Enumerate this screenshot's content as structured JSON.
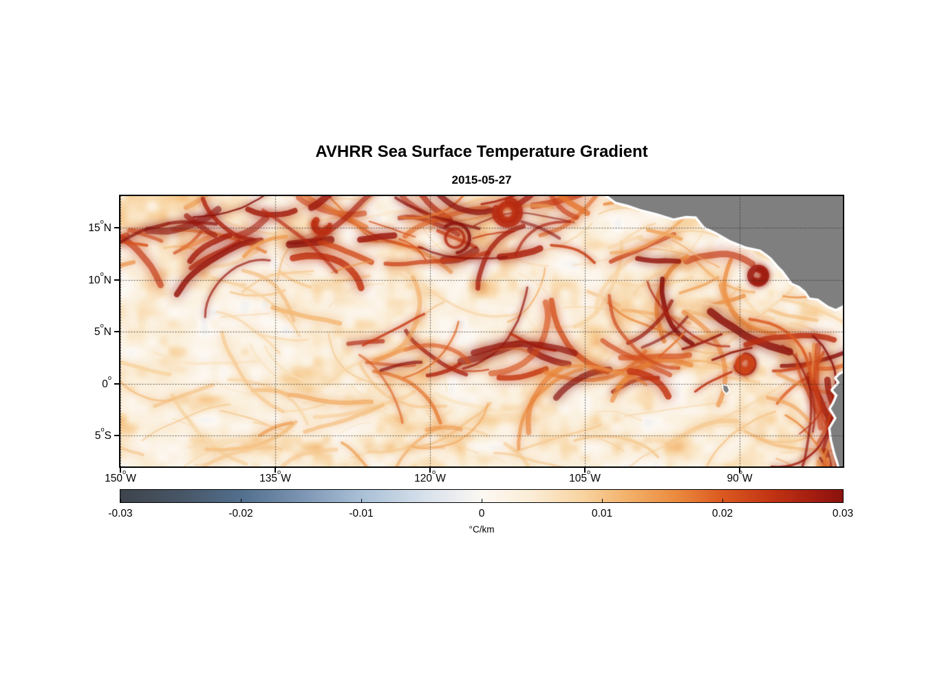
{
  "chart_data": {
    "type": "heatmap",
    "title": "AVHRR Sea Surface Temperature Gradient",
    "date": "2015-05-27",
    "x_axis": {
      "range_lon": [
        -150,
        -80
      ],
      "degree_mark": "o",
      "ticks": [
        {
          "label": "150°W",
          "deg": "150",
          "hemi": "W",
          "lon": -150
        },
        {
          "label": "135°W",
          "deg": "135",
          "hemi": "W",
          "lon": -135
        },
        {
          "label": "120°W",
          "deg": "120",
          "hemi": "W",
          "lon": -120
        },
        {
          "label": "105°W",
          "deg": "105",
          "hemi": "W",
          "lon": -105
        },
        {
          "label": "90°W",
          "deg": "90",
          "hemi": "W",
          "lon": -90
        }
      ]
    },
    "y_axis": {
      "range_lat": [
        -7.95,
        18.05
      ],
      "degree_mark": "o",
      "ticks": [
        {
          "label": "15°N",
          "deg": "15",
          "hemi": "N",
          "lat": 15
        },
        {
          "label": "10°N",
          "deg": "10",
          "hemi": "N",
          "lat": 10
        },
        {
          "label": "5°N",
          "deg": "5",
          "hemi": "N",
          "lat": 5
        },
        {
          "label": "0°",
          "deg": "0",
          "hemi": "",
          "lat": 0
        },
        {
          "label": "5°S",
          "deg": "5",
          "hemi": "S",
          "lat": -5
        }
      ]
    },
    "colorbar": {
      "label": "°C/km",
      "min": -0.03,
      "max": 0.03,
      "ticks": [
        {
          "label": "-0.03",
          "value": -0.03
        },
        {
          "label": "-0.02",
          "value": -0.02
        },
        {
          "label": "-0.01",
          "value": -0.01
        },
        {
          "label": "0",
          "value": 0
        },
        {
          "label": "0.01",
          "value": 0.01
        },
        {
          "label": "0.02",
          "value": 0.02
        },
        {
          "label": "0.03",
          "value": 0.03
        }
      ],
      "colormap_stops": [
        {
          "pos": 0.0,
          "color": "#3e444c"
        },
        {
          "pos": 0.085,
          "color": "#475666"
        },
        {
          "pos": 0.17,
          "color": "#53708e"
        },
        {
          "pos": 0.25,
          "color": "#7b94b2"
        },
        {
          "pos": 0.33,
          "color": "#a7bed5"
        },
        {
          "pos": 0.42,
          "color": "#d6e0eb"
        },
        {
          "pos": 0.5,
          "color": "#fcf8f3"
        },
        {
          "pos": 0.565,
          "color": "#fbeed8"
        },
        {
          "pos": 0.64,
          "color": "#f8d3a0"
        },
        {
          "pos": 0.7,
          "color": "#f3b26c"
        },
        {
          "pos": 0.77,
          "color": "#ea8a3e"
        },
        {
          "pos": 0.83,
          "color": "#dc5b21"
        },
        {
          "pos": 0.9,
          "color": "#c23413"
        },
        {
          "pos": 0.96,
          "color": "#a31d10"
        },
        {
          "pos": 1.0,
          "color": "#8a120e"
        }
      ]
    },
    "map": {
      "ocean_base_color": "#fdf0dc",
      "land_color": "#7f7f7f",
      "coast_outline_color": "#ffffff",
      "grid_color": "#2d2d2d",
      "high_gradient_features": [
        {
          "name": "scattered-weak-filaments",
          "type": "band",
          "lon": [
            -150,
            -80
          ],
          "lat": [
            -8,
            18
          ],
          "intensity": 0.33,
          "count": 130
        },
        {
          "name": "south-weak-band",
          "type": "band",
          "lon": [
            -150,
            -118
          ],
          "lat": [
            -6.5,
            -1.5
          ],
          "intensity": 0.42,
          "count": 22
        },
        {
          "name": "costa-rica-dome-filaments",
          "type": "band",
          "lon": [
            -96,
            -85
          ],
          "lat": [
            4,
            9
          ],
          "intensity": 0.5,
          "count": 18
        },
        {
          "name": "north-tropical-front-band",
          "type": "band",
          "lon": [
            -150,
            -93
          ],
          "lat": [
            11.5,
            17.5
          ],
          "intensity": 0.95,
          "count": 72
        },
        {
          "name": "equatorial-front-band",
          "type": "band",
          "lon": [
            -128,
            -81
          ],
          "lat": [
            0.5,
            4
          ],
          "intensity": 0.9,
          "count": 50
        },
        {
          "name": "south-american-coastal-band",
          "type": "band",
          "lon": [
            -83.5,
            -80
          ],
          "lat": [
            -8,
            1
          ],
          "intensity": 0.95,
          "count": 30,
          "vertical": true
        },
        {
          "name": "north-band-eddy-1",
          "type": "eddy",
          "center": [
            -130.5,
            15.3
          ],
          "radius_deg": 1.4,
          "intensity": 0.9
        },
        {
          "name": "north-band-eddy-2",
          "type": "eddy",
          "center": [
            -117.6,
            14.0
          ],
          "radius_deg": 1.6,
          "intensity": 1.0
        },
        {
          "name": "north-band-eddy-3",
          "type": "eddy",
          "center": [
            -112.5,
            16.5
          ],
          "radius_deg": 1.2,
          "intensity": 0.95
        },
        {
          "name": "tehuantepec-eddy",
          "type": "eddy",
          "center": [
            -88.2,
            10.4
          ],
          "radius_deg": 1.1,
          "intensity": 0.95
        },
        {
          "name": "equatorial-east-eddy",
          "type": "eddy",
          "center": [
            -89.5,
            1.9
          ],
          "radius_deg": 1.3,
          "intensity": 0.95
        }
      ],
      "land_polygons": [
        {
          "name": "central-america-mexico",
          "small": false,
          "points": [
            [
              -103.3,
              18.5
            ],
            [
              -102.0,
              17.5
            ],
            [
              -100.8,
              17.2
            ],
            [
              -99.6,
              16.8
            ],
            [
              -98.0,
              16.4
            ],
            [
              -96.4,
              15.9
            ],
            [
              -95.2,
              16.15
            ],
            [
              -94.2,
              16.1
            ],
            [
              -93.4,
              15.1
            ],
            [
              -92.3,
              14.6
            ],
            [
              -90.9,
              13.8
            ],
            [
              -89.4,
              13.2
            ],
            [
              -88.0,
              12.9
            ],
            [
              -87.4,
              12.5
            ],
            [
              -86.9,
              12.1
            ],
            [
              -86.3,
              11.4
            ],
            [
              -85.8,
              10.9
            ],
            [
              -85.2,
              10.1
            ],
            [
              -84.9,
              9.7
            ],
            [
              -84.2,
              9.4
            ],
            [
              -83.6,
              8.9
            ],
            [
              -83.2,
              8.3
            ],
            [
              -82.4,
              8.2
            ],
            [
              -81.4,
              7.5
            ],
            [
              -80.7,
              7.2
            ],
            [
              -80.1,
              7.5
            ],
            [
              -79.5,
              7.8
            ],
            [
              -79.5,
              18.5
            ]
          ]
        },
        {
          "name": "south-america",
          "small": false,
          "points": [
            [
              -79.5,
              1.2
            ],
            [
              -80.25,
              0.9
            ],
            [
              -80.6,
              0.55
            ],
            [
              -80.3,
              0.1
            ],
            [
              -80.95,
              -0.6
            ],
            [
              -80.5,
              -1.1
            ],
            [
              -80.85,
              -1.9
            ],
            [
              -81.15,
              -2.4
            ],
            [
              -80.6,
              -3.3
            ],
            [
              -81.2,
              -4.3
            ],
            [
              -81.05,
              -5.4
            ],
            [
              -80.75,
              -6.6
            ],
            [
              -80.4,
              -7.7
            ],
            [
              -80.2,
              -8.5
            ],
            [
              -79.5,
              -8.5
            ]
          ]
        },
        {
          "name": "galapagos-islands",
          "small": true,
          "points": [
            [
              -91.6,
              -0.15
            ],
            [
              -91.2,
              -0.25
            ],
            [
              -91.05,
              -0.65
            ],
            [
              -91.3,
              -0.9
            ],
            [
              -91.55,
              -0.6
            ]
          ]
        }
      ]
    }
  }
}
